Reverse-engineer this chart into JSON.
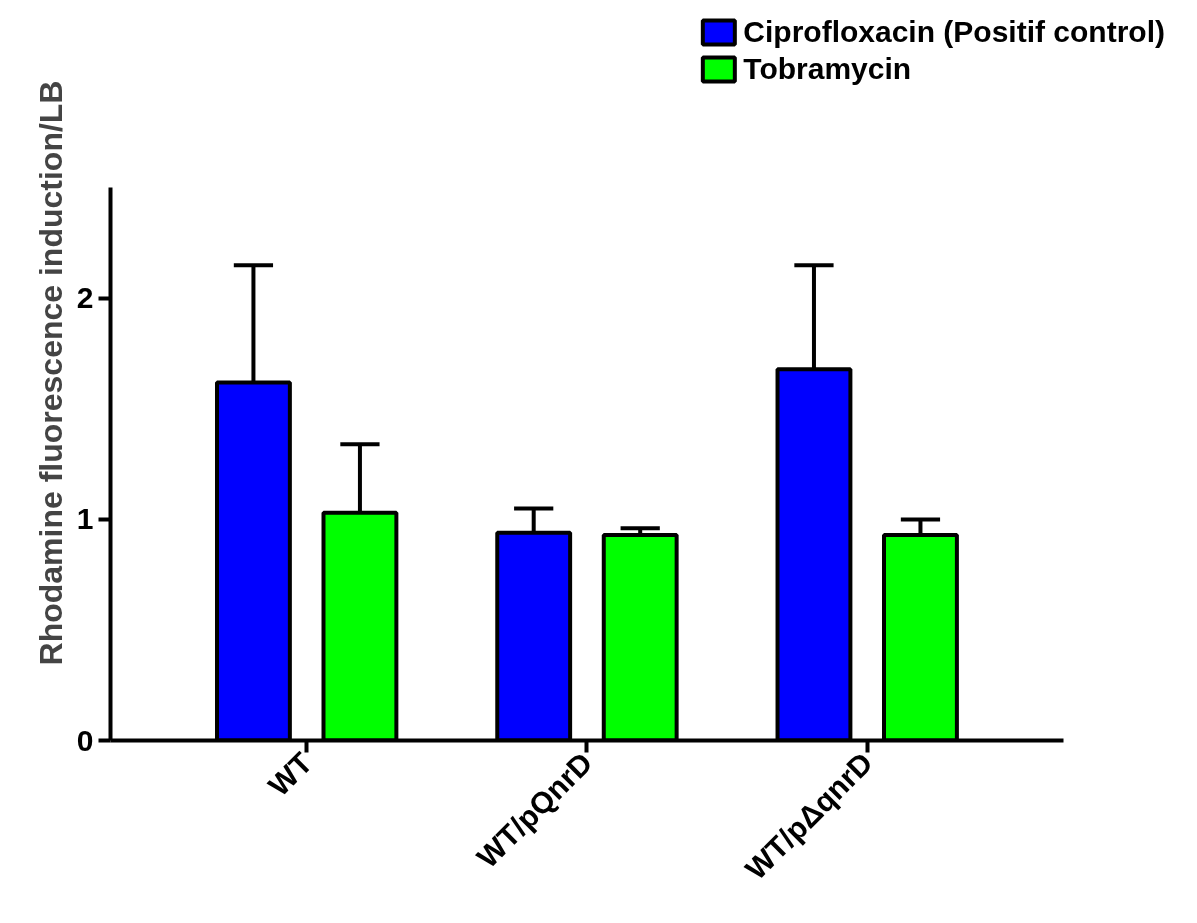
{
  "chart_data": {
    "type": "bar",
    "ylabel": "Rhodamine fluorescence induction/LB",
    "categories": [
      "WT",
      "WT/pQnrD",
      "WT/pΔqnrD"
    ],
    "series": [
      {
        "name": "Ciprofloxacin (Positif control)",
        "color": "#0000ff",
        "values": [
          1.62,
          0.94,
          1.68
        ],
        "errors": [
          [
            1.62,
            2.15
          ],
          [
            0.94,
            1.05
          ],
          [
            1.68,
            2.15
          ]
        ]
      },
      {
        "name": "Tobramycin",
        "color": "#00ff00",
        "values": [
          1.03,
          0.93,
          0.93
        ],
        "errors": [
          [
            1.03,
            1.34
          ],
          [
            0.93,
            0.96
          ],
          [
            0.93,
            1.0
          ]
        ]
      }
    ],
    "ylim": [
      0,
      2.5
    ],
    "yticks": [
      0,
      1,
      2
    ],
    "grid": false,
    "legend": "top right"
  }
}
